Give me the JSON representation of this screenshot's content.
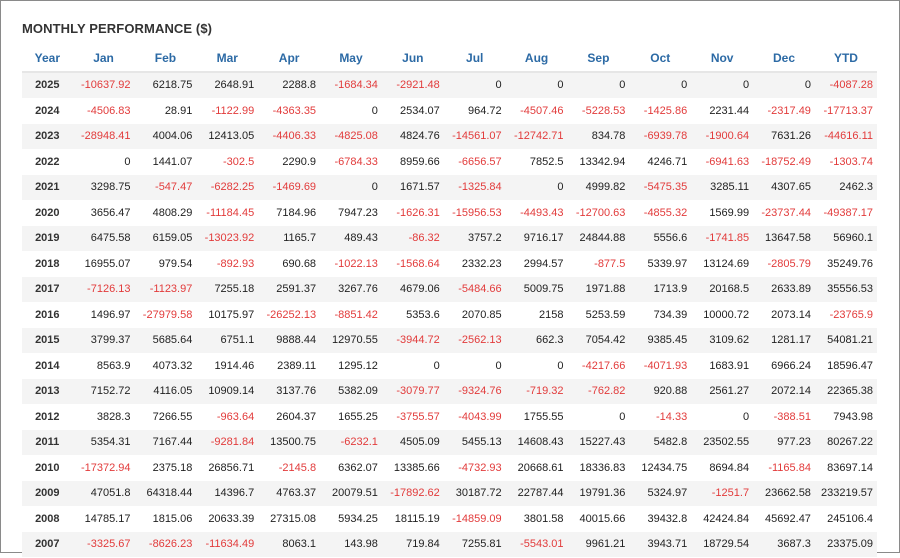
{
  "title": "MONTHLY PERFORMANCE ($)",
  "colors": {
    "negative": "#e23b3b",
    "header": "#2c6aa5",
    "stripe": "#f4f4f4"
  },
  "columns": [
    "Year",
    "Jan",
    "Feb",
    "Mar",
    "Apr",
    "May",
    "Jun",
    "Jul",
    "Aug",
    "Sep",
    "Oct",
    "Nov",
    "Dec",
    "YTD"
  ],
  "rows": [
    [
      "2025",
      "-10637.92",
      "6218.75",
      "2648.91",
      "2288.8",
      "-1684.34",
      "-2921.48",
      "0",
      "0",
      "0",
      "0",
      "0",
      "0",
      "-4087.28"
    ],
    [
      "2024",
      "-4506.83",
      "28.91",
      "-1122.99",
      "-4363.35",
      "0",
      "2534.07",
      "964.72",
      "-4507.46",
      "-5228.53",
      "-1425.86",
      "2231.44",
      "-2317.49",
      "-17713.37"
    ],
    [
      "2023",
      "-28948.41",
      "4004.06",
      "12413.05",
      "-4406.33",
      "-4825.08",
      "4824.76",
      "-14561.07",
      "-12742.71",
      "834.78",
      "-6939.78",
      "-1900.64",
      "7631.26",
      "-44616.11"
    ],
    [
      "2022",
      "0",
      "1441.07",
      "-302.5",
      "2290.9",
      "-6784.33",
      "8959.66",
      "-6656.57",
      "7852.5",
      "13342.94",
      "4246.71",
      "-6941.63",
      "-18752.49",
      "-1303.74"
    ],
    [
      "2021",
      "3298.75",
      "-547.47",
      "-6282.25",
      "-1469.69",
      "0",
      "1671.57",
      "-1325.84",
      "0",
      "4999.82",
      "-5475.35",
      "3285.11",
      "4307.65",
      "2462.3"
    ],
    [
      "2020",
      "3656.47",
      "4808.29",
      "-11184.45",
      "7184.96",
      "7947.23",
      "-1626.31",
      "-15956.53",
      "-4493.43",
      "-12700.63",
      "-4855.32",
      "1569.99",
      "-23737.44",
      "-49387.17"
    ],
    [
      "2019",
      "6475.58",
      "6159.05",
      "-13023.92",
      "1165.7",
      "489.43",
      "-86.32",
      "3757.2",
      "9716.17",
      "24844.88",
      "5556.6",
      "-1741.85",
      "13647.58",
      "56960.1"
    ],
    [
      "2018",
      "16955.07",
      "979.54",
      "-892.93",
      "690.68",
      "-1022.13",
      "-1568.64",
      "2332.23",
      "2994.57",
      "-877.5",
      "5339.97",
      "13124.69",
      "-2805.79",
      "35249.76"
    ],
    [
      "2017",
      "-7126.13",
      "-1123.97",
      "7255.18",
      "2591.37",
      "3267.76",
      "4679.06",
      "-5484.66",
      "5009.75",
      "1971.88",
      "1713.9",
      "20168.5",
      "2633.89",
      "35556.53"
    ],
    [
      "2016",
      "1496.97",
      "-27979.58",
      "10175.97",
      "-26252.13",
      "-8851.42",
      "5353.6",
      "2070.85",
      "2158",
      "5253.59",
      "734.39",
      "10000.72",
      "2073.14",
      "-23765.9"
    ],
    [
      "2015",
      "3799.37",
      "5685.64",
      "6751.1",
      "9888.44",
      "12970.55",
      "-3944.72",
      "-2562.13",
      "662.3",
      "7054.42",
      "9385.45",
      "3109.62",
      "1281.17",
      "54081.21"
    ],
    [
      "2014",
      "8563.9",
      "4073.32",
      "1914.46",
      "2389.11",
      "1295.12",
      "0",
      "0",
      "0",
      "-4217.66",
      "-4071.93",
      "1683.91",
      "6966.24",
      "18596.47"
    ],
    [
      "2013",
      "7152.72",
      "4116.05",
      "10909.14",
      "3137.76",
      "5382.09",
      "-3079.77",
      "-9324.76",
      "-719.32",
      "-762.82",
      "920.88",
      "2561.27",
      "2072.14",
      "22365.38"
    ],
    [
      "2012",
      "3828.3",
      "7266.55",
      "-963.64",
      "2604.37",
      "1655.25",
      "-3755.57",
      "-4043.99",
      "1755.55",
      "0",
      "-14.33",
      "0",
      "-388.51",
      "7943.98"
    ],
    [
      "2011",
      "5354.31",
      "7167.44",
      "-9281.84",
      "13500.75",
      "-6232.1",
      "4505.09",
      "5455.13",
      "14608.43",
      "15227.43",
      "5482.8",
      "23502.55",
      "977.23",
      "80267.22"
    ],
    [
      "2010",
      "-17372.94",
      "2375.18",
      "26856.71",
      "-2145.8",
      "6362.07",
      "13385.66",
      "-4732.93",
      "20668.61",
      "18336.83",
      "12434.75",
      "8694.84",
      "-1165.84",
      "83697.14"
    ],
    [
      "2009",
      "47051.8",
      "64318.44",
      "14396.7",
      "4763.37",
      "20079.51",
      "-17892.62",
      "30187.72",
      "22787.44",
      "19791.36",
      "5324.97",
      "-1251.7",
      "23662.58",
      "233219.57"
    ],
    [
      "2008",
      "14785.17",
      "1815.06",
      "20633.39",
      "27315.08",
      "5934.25",
      "18115.19",
      "-14859.09",
      "3801.58",
      "40015.66",
      "39432.8",
      "42424.84",
      "45692.47",
      "245106.4"
    ],
    [
      "2007",
      "-3325.67",
      "-8626.23",
      "-11634.49",
      "8063.1",
      "143.98",
      "719.84",
      "7255.81",
      "-5543.01",
      "9961.21",
      "3943.71",
      "18729.54",
      "3687.3",
      "23375.09"
    ]
  ]
}
